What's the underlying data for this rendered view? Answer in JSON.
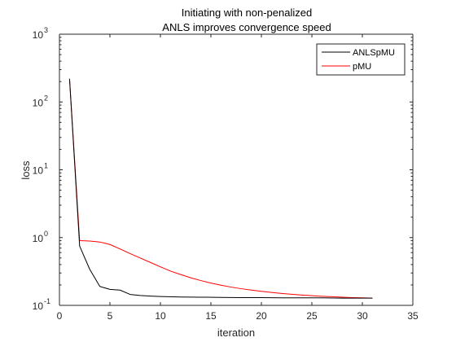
{
  "chart_data": {
    "type": "line",
    "title": [
      "Initiating with non-penalized",
      "ANLS improves convergence speed"
    ],
    "xlabel": "iteration",
    "ylabel": "loss",
    "xlim": [
      0,
      35
    ],
    "ylim": [
      0.1,
      1000
    ],
    "yscale": "log",
    "xticks": [
      0,
      5,
      10,
      15,
      20,
      25,
      30,
      35
    ],
    "xtick_labels": [
      "0",
      "5",
      "10",
      "15",
      "20",
      "25",
      "30",
      "35"
    ],
    "yticks": [
      0.1,
      1,
      10,
      100,
      1000
    ],
    "ytick_labels": [
      {
        "base": "10",
        "exp": "-1"
      },
      {
        "base": "10",
        "exp": "0"
      },
      {
        "base": "10",
        "exp": "1"
      },
      {
        "base": "10",
        "exp": "2"
      },
      {
        "base": "10",
        "exp": "3"
      }
    ],
    "grid": false,
    "legend_position": "top-right",
    "series": [
      {
        "name": "ANLSpMU",
        "color": "#000000",
        "x": [
          1,
          2,
          3,
          4,
          5,
          6,
          7,
          8,
          9,
          10,
          12,
          14,
          16,
          18,
          20,
          22,
          24,
          26,
          28,
          30,
          31
        ],
        "y": [
          220,
          0.75,
          0.34,
          0.19,
          0.172,
          0.168,
          0.145,
          0.14,
          0.137,
          0.135,
          0.133,
          0.132,
          0.131,
          0.13,
          0.13,
          0.129,
          0.129,
          0.129,
          0.128,
          0.128,
          0.128
        ]
      },
      {
        "name": "pMU",
        "color": "#ff0000",
        "x": [
          1,
          2,
          3,
          4,
          5,
          6,
          7,
          8,
          9,
          10,
          11,
          12,
          13,
          14,
          15,
          16,
          17,
          18,
          19,
          20,
          21,
          22,
          23,
          24,
          25,
          26,
          27,
          28,
          29,
          30,
          31
        ],
        "y": [
          220,
          0.9,
          0.89,
          0.86,
          0.79,
          0.68,
          0.58,
          0.5,
          0.43,
          0.37,
          0.32,
          0.285,
          0.255,
          0.232,
          0.213,
          0.198,
          0.186,
          0.176,
          0.168,
          0.161,
          0.155,
          0.15,
          0.146,
          0.142,
          0.139,
          0.136,
          0.134,
          0.132,
          0.13,
          0.129,
          0.128
        ]
      }
    ]
  }
}
